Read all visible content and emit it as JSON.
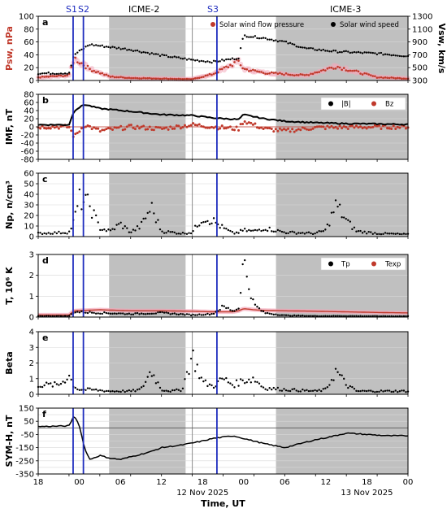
{
  "header": {
    "shock_labels": [
      "S1",
      "S2",
      "S3"
    ],
    "icme_labels": [
      "ICME-2",
      "ICME-3"
    ]
  },
  "x_axis": {
    "ticks": [
      "18",
      "00",
      "06",
      "12",
      "18",
      "00",
      "06",
      "12",
      "18",
      "00"
    ],
    "date_labels": [
      "12 Nov 2025",
      "13 Nov 2025"
    ],
    "label": "Time, UT"
  },
  "colors": {
    "black": "#000000",
    "red": "#c0392b",
    "shade": "#c0c0c0",
    "shock_line": "#1f2dbf",
    "day_line": "#8c8c8c",
    "pink_band": "#f4a7b9"
  },
  "chart_data": [
    {
      "type": "scatter",
      "panel": "a",
      "ylabel": "Psw, nPa",
      "ylabel_right": "Vsw, km/s",
      "ylim": [
        0,
        100
      ],
      "ylim_right": [
        300,
        1300
      ],
      "yticks": [
        0,
        20,
        40,
        60,
        80,
        100
      ],
      "yticks_right": [
        300,
        500,
        700,
        900,
        1100,
        1300
      ],
      "legend": [
        "Solar wind flow pressure",
        "Solar wind speed"
      ],
      "hours_from_11nov_18ut": [
        0,
        6,
        7,
        10,
        14,
        18,
        24,
        30,
        34,
        39,
        40,
        44,
        48,
        52,
        58,
        66,
        72
      ],
      "series": [
        {
          "name": "Solar wind speed",
          "axis": "right",
          "values": [
            410,
            415,
            700,
            860,
            820,
            780,
            690,
            620,
            590,
            650,
            1000,
            960,
            900,
            800,
            750,
            720,
            680
          ]
        },
        {
          "name": "Solar wind flow pressure",
          "axis": "left",
          "values": [
            5,
            8,
            35,
            18,
            6,
            4,
            3,
            2,
            10,
            30,
            18,
            12,
            10,
            8,
            22,
            5,
            3
          ]
        }
      ]
    },
    {
      "type": "line",
      "panel": "b",
      "ylabel": "IMF, nT",
      "ylim": [
        -80,
        80
      ],
      "yticks": [
        -80,
        -60,
        -40,
        -20,
        0,
        20,
        40,
        60,
        80
      ],
      "legend": [
        "|B|",
        "Bz"
      ],
      "hours_from_11nov_18ut": [
        0,
        6,
        7,
        9,
        12,
        18,
        24,
        30,
        34,
        39,
        40,
        44,
        48,
        54,
        60,
        72
      ],
      "series": [
        {
          "name": "|B|",
          "values": [
            5,
            5,
            40,
            55,
            45,
            38,
            30,
            28,
            22,
            18,
            30,
            20,
            14,
            10,
            8,
            6
          ]
        },
        {
          "name": "Bz",
          "values": [
            0,
            0,
            -25,
            5,
            -10,
            0,
            -5,
            5,
            0,
            -5,
            15,
            -5,
            -10,
            -2,
            -1,
            0
          ]
        }
      ]
    },
    {
      "type": "scatter",
      "panel": "c",
      "ylabel": "Np, n/cm³",
      "ylim": [
        0,
        60
      ],
      "yticks": [
        0,
        10,
        20,
        30,
        40,
        50,
        60
      ],
      "hours_from_11nov_18ut": [
        0,
        6,
        7,
        8,
        10,
        12,
        14,
        16,
        18,
        20,
        22,
        24,
        28,
        30,
        32,
        34,
        36,
        38,
        39,
        40,
        42,
        44,
        48,
        54,
        56,
        58,
        60,
        62,
        66,
        72
      ],
      "series": [
        {
          "name": "Np",
          "values": [
            3,
            4,
            15,
            35,
            30,
            8,
            5,
            12,
            4,
            10,
            28,
            5,
            3,
            4,
            18,
            15,
            8,
            3,
            4,
            6,
            5,
            8,
            4,
            3,
            6,
            30,
            15,
            5,
            3,
            2
          ]
        }
      ]
    },
    {
      "type": "line",
      "panel": "d",
      "ylabel": "T, 10⁶ K",
      "ylim": [
        0,
        3
      ],
      "yticks": [
        0,
        1,
        2,
        3
      ],
      "legend": [
        "Tp",
        "Texp"
      ],
      "hours_from_11nov_18ut": [
        0,
        6,
        7,
        12,
        18,
        24,
        30,
        34,
        36,
        38,
        39,
        40,
        41,
        42,
        44,
        48,
        54,
        60,
        66,
        72
      ],
      "series": [
        {
          "name": "Tp",
          "values": [
            0.05,
            0.05,
            0.25,
            0.2,
            0.15,
            0.2,
            0.1,
            0.15,
            0.5,
            0.3,
            0.4,
            2.8,
            1.5,
            0.6,
            0.2,
            0.08,
            0.05,
            0.05,
            0.04,
            0.04
          ]
        },
        {
          "name": "Texp",
          "values": [
            0.1,
            0.1,
            0.3,
            0.35,
            0.3,
            0.3,
            0.28,
            0.25,
            0.25,
            0.25,
            0.3,
            0.4,
            0.38,
            0.35,
            0.32,
            0.3,
            0.28,
            0.25,
            0.22,
            0.2
          ]
        }
      ]
    },
    {
      "type": "scatter",
      "panel": "e",
      "ylabel": "Beta",
      "ylim": [
        0,
        4
      ],
      "yticks": [
        0,
        1,
        2,
        3,
        4
      ],
      "hours_from_11nov_18ut": [
        0,
        4,
        6,
        7,
        8,
        10,
        14,
        18,
        20,
        22,
        24,
        26,
        28,
        30,
        32,
        34,
        36,
        38,
        40,
        42,
        44,
        48,
        54,
        56,
        58,
        60,
        62,
        66,
        72
      ],
      "series": [
        {
          "name": "Beta",
          "values": [
            0.6,
            0.6,
            1.2,
            0.5,
            0.3,
            0.3,
            0.2,
            0.2,
            0.3,
            1.5,
            0.3,
            0.2,
            0.3,
            2.5,
            0.8,
            0.5,
            1.0,
            0.6,
            0.9,
            1.0,
            0.4,
            0.3,
            0.2,
            0.3,
            1.5,
            0.6,
            0.2,
            0.2,
            0.2
          ]
        }
      ]
    },
    {
      "type": "line",
      "panel": "f",
      "ylabel": "SYM-H, nT",
      "ylim": [
        -350,
        150
      ],
      "yticks": [
        -350,
        -250,
        -150,
        -50,
        50,
        150
      ],
      "yticks_extra": [
        -300,
        -200,
        -100,
        0,
        100
      ],
      "hours_from_11nov_18ut": [
        0,
        6,
        7,
        8,
        9,
        10,
        12,
        14,
        16,
        18,
        22,
        24,
        28,
        32,
        34,
        38,
        40,
        44,
        48,
        52,
        54,
        56,
        60,
        64,
        68,
        72
      ],
      "series": [
        {
          "name": "SYM-H",
          "values": [
            10,
            15,
            95,
            20,
            -150,
            -240,
            -210,
            -230,
            -240,
            -220,
            -180,
            -150,
            -130,
            -100,
            -80,
            -60,
            -80,
            -120,
            -150,
            -110,
            -90,
            -75,
            -40,
            -50,
            -60,
            -60
          ]
        }
      ]
    }
  ]
}
